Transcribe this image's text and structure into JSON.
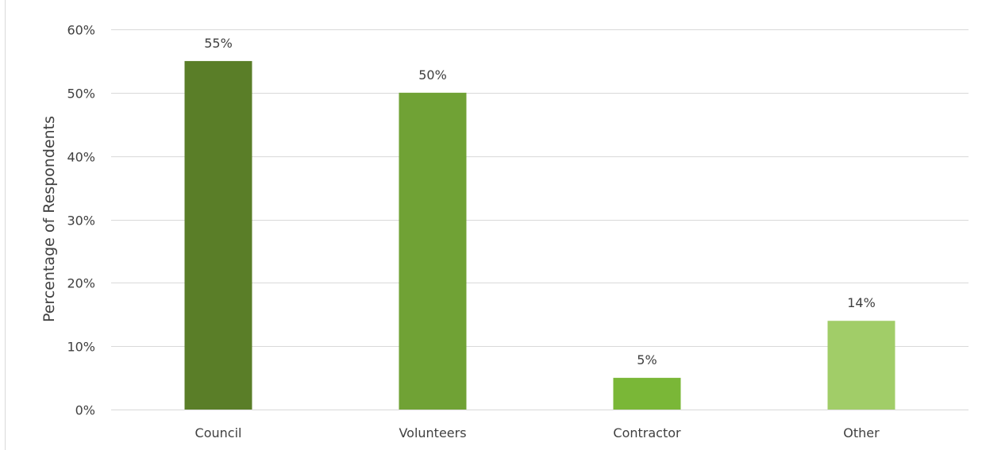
{
  "chart_data": {
    "type": "bar",
    "title": "",
    "xlabel": "",
    "ylabel": "Percentage of Respondents",
    "categories": [
      "Council",
      "Volunteers",
      "Contractor",
      "Other"
    ],
    "values": [
      55,
      50,
      5,
      14
    ],
    "value_labels": [
      "55%",
      "50%",
      "5%",
      "14%"
    ],
    "bar_colors": [
      "#5a7e28",
      "#70a235",
      "#7ab737",
      "#a1cd68"
    ],
    "ylim": [
      0,
      60
    ],
    "yticks": [
      0,
      10,
      20,
      30,
      40,
      50,
      60
    ],
    "ytick_labels": [
      "0%",
      "10%",
      "20%",
      "30%",
      "40%",
      "50%",
      "60%"
    ],
    "grid": true,
    "legend": "none"
  },
  "colors": {
    "gridline": "#d9d9d9",
    "axis_text": "#404040",
    "border": "#bfbfbf"
  }
}
